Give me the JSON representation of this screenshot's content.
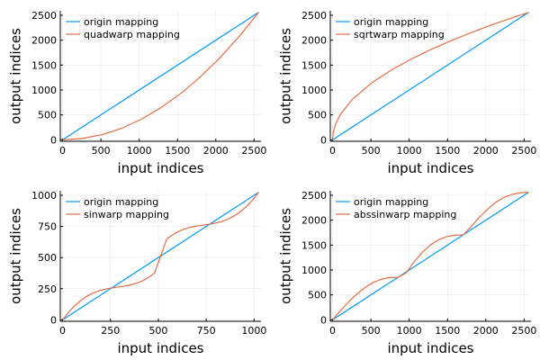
{
  "chart_data": [
    {
      "type": "line",
      "xlabel": "input indices",
      "ylabel": "output indices",
      "xlim": [
        -30,
        2590
      ],
      "ylim": [
        -30,
        2590
      ],
      "xticks": [
        0,
        500,
        1000,
        1500,
        2000,
        2500
      ],
      "yticks": [
        0,
        500,
        1000,
        1500,
        2000,
        2500
      ],
      "grid": true,
      "legend": "top-left",
      "series": [
        {
          "name": "origin mapping",
          "color": "#009AFA",
          "points": [
            [
              0,
              0
            ],
            [
              2560,
              2560
            ]
          ]
        },
        {
          "name": "quadwarp mapping",
          "color": "#E36F47",
          "points": [
            [
              0,
              0
            ],
            [
              256,
              26
            ],
            [
              512,
              102
            ],
            [
              768,
              230
            ],
            [
              1024,
              410
            ],
            [
              1280,
              640
            ],
            [
              1536,
              922
            ],
            [
              1792,
              1254
            ],
            [
              2048,
              1638
            ],
            [
              2304,
              2074
            ],
            [
              2560,
              2560
            ]
          ]
        }
      ]
    },
    {
      "type": "line",
      "xlabel": "input indices",
      "ylabel": "output indices",
      "xlim": [
        -30,
        2590
      ],
      "ylim": [
        -30,
        2590
      ],
      "xticks": [
        0,
        500,
        1000,
        1500,
        2000,
        2500
      ],
      "yticks": [
        0,
        500,
        1000,
        1500,
        2000,
        2500
      ],
      "grid": true,
      "legend": "top-left",
      "series": [
        {
          "name": "origin mapping",
          "color": "#009AFA",
          "points": [
            [
              0,
              0
            ],
            [
              2560,
              2560
            ]
          ]
        },
        {
          "name": "sqrtwarp mapping",
          "color": "#E36F47",
          "points": [
            [
              0,
              0
            ],
            [
              10,
              160
            ],
            [
              40,
              320
            ],
            [
              100,
              506
            ],
            [
              256,
              810
            ],
            [
              512,
              1145
            ],
            [
              768,
              1402
            ],
            [
              1024,
              1619
            ],
            [
              1280,
              1810
            ],
            [
              1536,
              1983
            ],
            [
              1792,
              2142
            ],
            [
              2048,
              2290
            ],
            [
              2304,
              2429
            ],
            [
              2560,
              2560
            ]
          ]
        }
      ]
    },
    {
      "type": "line",
      "xlabel": "input indices",
      "ylabel": "output indices",
      "xlim": [
        -12,
        1036
      ],
      "ylim": [
        -12,
        1036
      ],
      "xticks": [
        0,
        250,
        500,
        750,
        1000
      ],
      "yticks": [
        0,
        250,
        500,
        750,
        1000
      ],
      "grid": true,
      "legend": "top-left",
      "series": [
        {
          "name": "origin mapping",
          "color": "#009AFA",
          "points": [
            [
              0,
              0
            ],
            [
              1024,
              1024
            ]
          ]
        },
        {
          "name": "sinwarp mapping",
          "color": "#E36F47",
          "points": [
            [
              0,
              0
            ],
            [
              32,
              63
            ],
            [
              64,
              114
            ],
            [
              96,
              156
            ],
            [
              128,
              190
            ],
            [
              160,
              215
            ],
            [
              192,
              234
            ],
            [
              224,
              247
            ],
            [
              256,
              256
            ],
            [
              288,
              263
            ],
            [
              320,
              270
            ],
            [
              352,
              279
            ],
            [
              384,
              293
            ],
            [
              416,
              312
            ],
            [
              448,
              340
            ],
            [
              480,
              375
            ],
            [
              512,
              512
            ],
            [
              544,
              649
            ],
            [
              576,
              684
            ],
            [
              608,
              712
            ],
            [
              640,
              731
            ],
            [
              672,
              745
            ],
            [
              704,
              754
            ],
            [
              736,
              761
            ],
            [
              768,
              768
            ],
            [
              800,
              777
            ],
            [
              832,
              790
            ],
            [
              864,
              809
            ],
            [
              896,
              834
            ],
            [
              928,
              868
            ],
            [
              960,
              910
            ],
            [
              992,
              961
            ],
            [
              1024,
              1024
            ]
          ]
        }
      ]
    },
    {
      "type": "line",
      "xlabel": "input indices",
      "ylabel": "output indices",
      "xlim": [
        -30,
        2590
      ],
      "ylim": [
        -30,
        2590
      ],
      "xticks": [
        0,
        500,
        1000,
        1500,
        2000,
        2500
      ],
      "yticks": [
        0,
        500,
        1000,
        1500,
        2000,
        2500
      ],
      "grid": true,
      "legend": "top-left",
      "series": [
        {
          "name": "origin mapping",
          "color": "#009AFA",
          "points": [
            [
              0,
              0
            ],
            [
              2560,
              2560
            ]
          ]
        },
        {
          "name": "abssinwarp mapping",
          "color": "#E36F47",
          "points": [
            [
              0,
              0
            ],
            [
              107,
              190
            ],
            [
              213,
              367
            ],
            [
              320,
              521
            ],
            [
              427,
              652
            ],
            [
              533,
              752
            ],
            [
              640,
              815
            ],
            [
              747,
              848
            ],
            [
              853,
              853
            ],
            [
              960,
              940
            ],
            [
              1067,
              1170
            ],
            [
              1173,
              1357
            ],
            [
              1280,
              1507
            ],
            [
              1387,
              1609
            ],
            [
              1493,
              1672
            ],
            [
              1600,
              1700
            ],
            [
              1707,
              1707
            ],
            [
              1813,
              1880
            ],
            [
              1920,
              2066
            ],
            [
              2027,
              2227
            ],
            [
              2133,
              2361
            ],
            [
              2240,
              2460
            ],
            [
              2347,
              2520
            ],
            [
              2453,
              2552
            ],
            [
              2560,
              2560
            ]
          ]
        }
      ]
    }
  ]
}
